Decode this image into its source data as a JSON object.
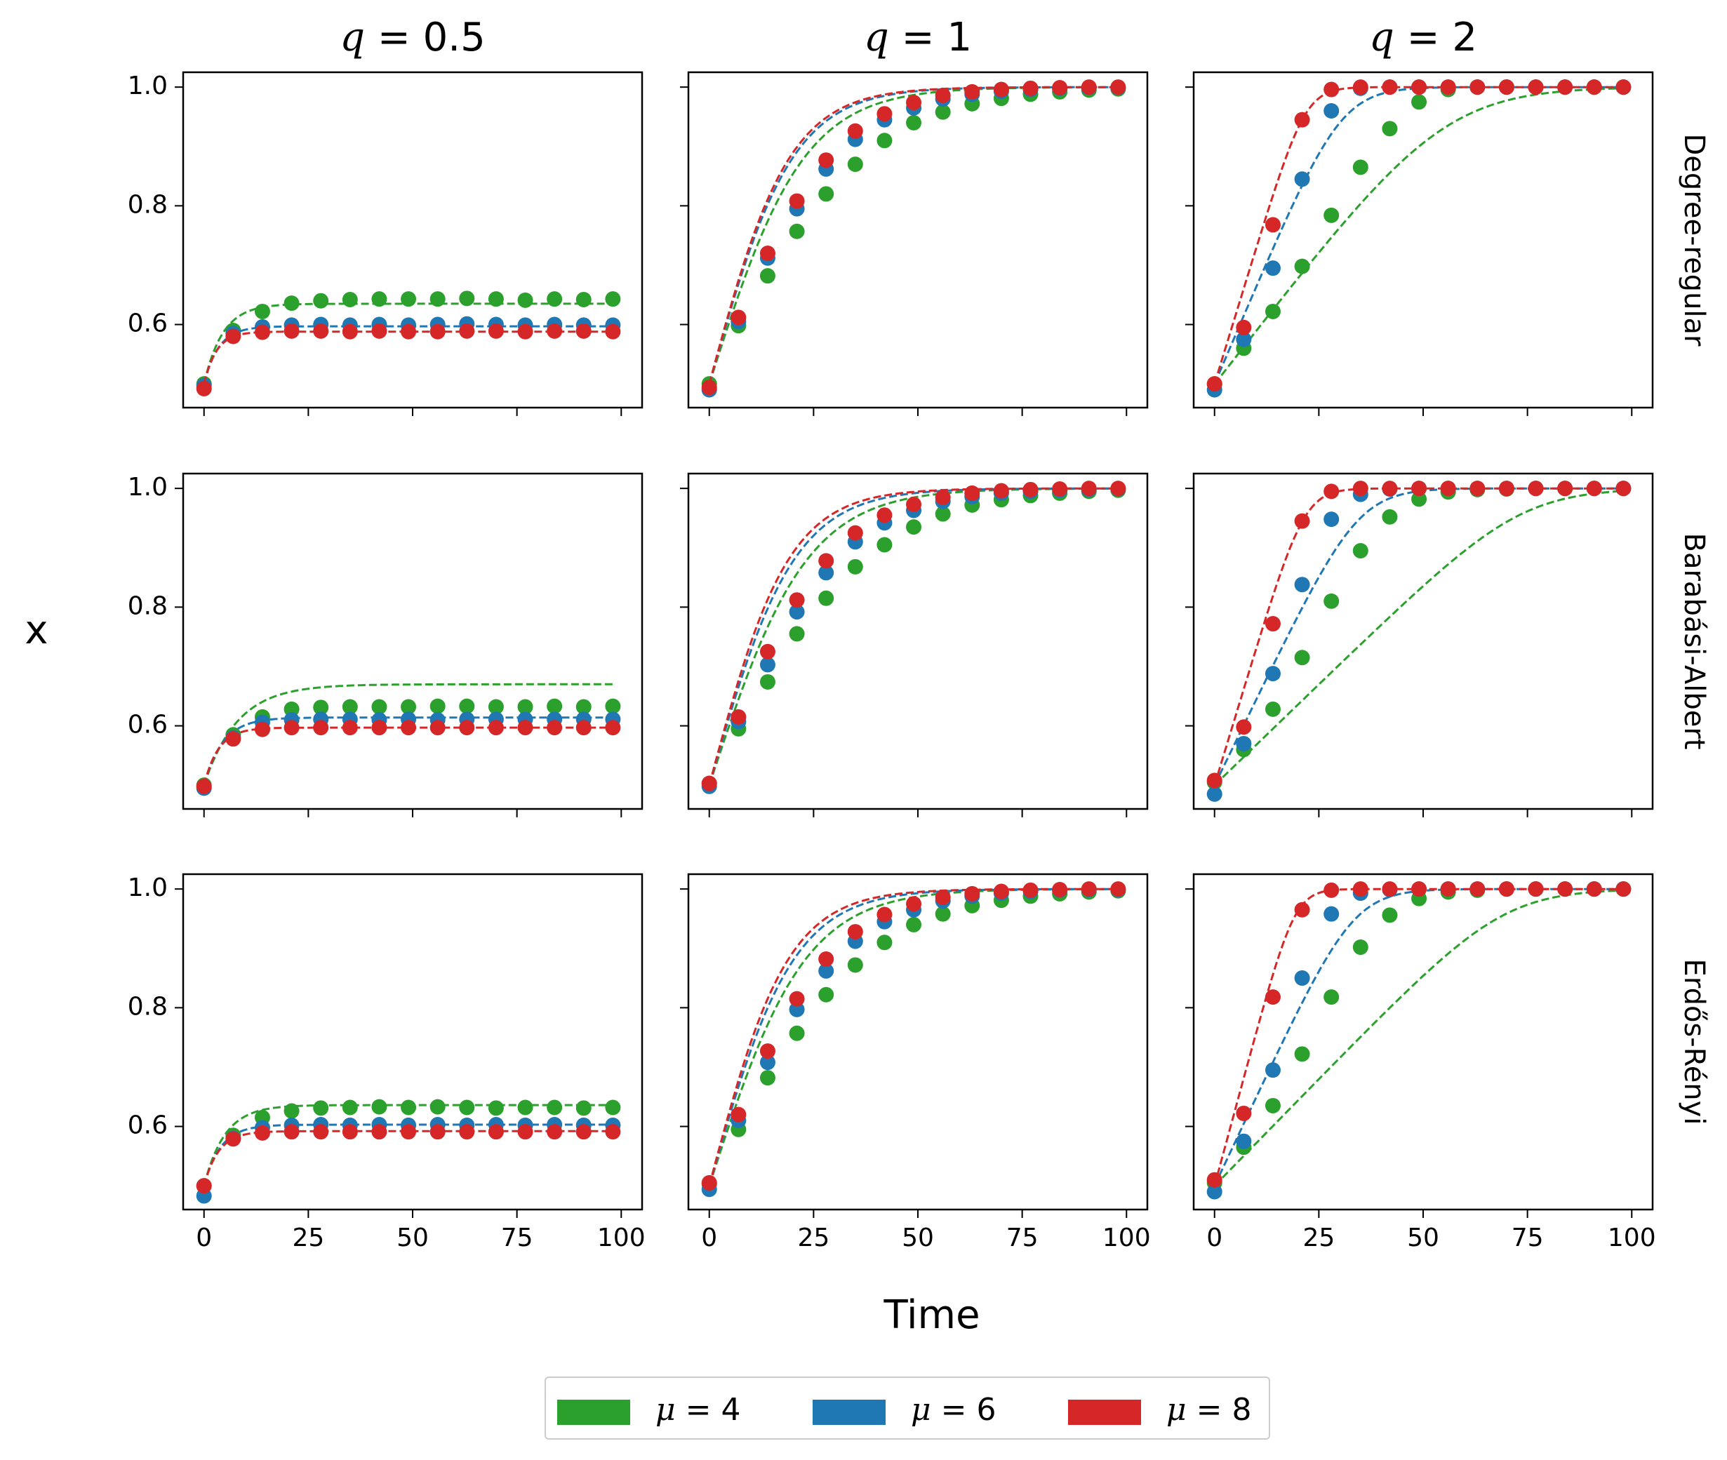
{
  "chart_data": {
    "type": "line",
    "xlabel": "Time",
    "ylabel": "x",
    "xlim": [
      -5,
      105
    ],
    "ylim": [
      0.46,
      1.025
    ],
    "xticks": [
      0,
      25,
      50,
      75,
      100
    ],
    "xtick_labels": [
      "0",
      "25",
      "50",
      "75",
      "100"
    ],
    "yticks": [
      0.6,
      0.8,
      1.0
    ],
    "ytick_labels": [
      "0.6",
      "0.8",
      "1.0"
    ],
    "column_titles": [
      {
        "label": "q",
        "value": "0.5"
      },
      {
        "label": "q",
        "value": "1"
      },
      {
        "label": "q",
        "value": "2"
      }
    ],
    "row_labels": [
      "Degree-regular",
      "Barabási-Albert",
      "Erdős-Rényi"
    ],
    "marker_times": [
      0,
      7,
      14,
      21,
      28,
      35,
      42,
      49,
      56,
      63,
      70,
      77,
      84,
      91,
      98
    ],
    "model_line_range": [
      0,
      98
    ],
    "series_meta": [
      {
        "name": "μ = 4",
        "symbol": "μ",
        "value": "4",
        "color": "#2ca02c"
      },
      {
        "name": "μ = 6",
        "symbol": "μ",
        "value": "6",
        "color": "#1f77b4"
      },
      {
        "name": "μ = 8",
        "symbol": "μ",
        "value": "8",
        "color": "#d62728"
      }
    ],
    "panels": [
      {
        "row": 0,
        "col": 0,
        "series": [
          {
            "name": "μ = 4",
            "model": {
              "type": "saturating",
              "x0": 0.5,
              "xinf": 0.635,
              "tau": 4.5
            },
            "simulated": [
              0.5,
              0.59,
              0.622,
              0.636,
              0.64,
              0.642,
              0.643,
              0.643,
              0.643,
              0.644,
              0.643,
              0.641,
              0.643,
              0.642,
              0.643
            ]
          },
          {
            "name": "μ = 6",
            "model": {
              "type": "saturating",
              "x0": 0.5,
              "xinf": 0.597,
              "tau": 3.5
            },
            "simulated": [
              0.497,
              0.585,
              0.596,
              0.599,
              0.6,
              0.599,
              0.6,
              0.599,
              0.6,
              0.601,
              0.6,
              0.599,
              0.6,
              0.599,
              0.599
            ]
          },
          {
            "name": "μ = 8",
            "model": {
              "type": "saturating",
              "x0": 0.5,
              "xinf": 0.588,
              "tau": 3.0
            },
            "simulated": [
              0.492,
              0.58,
              0.587,
              0.589,
              0.589,
              0.588,
              0.589,
              0.588,
              0.588,
              0.589,
              0.589,
              0.588,
              0.589,
              0.589,
              0.588
            ]
          }
        ]
      },
      {
        "row": 0,
        "col": 1,
        "series": [
          {
            "name": "μ = 4",
            "model": {
              "type": "logistic",
              "r": 0.088
            },
            "simulated": [
              0.5,
              0.598,
              0.682,
              0.757,
              0.82,
              0.87,
              0.91,
              0.94,
              0.958,
              0.972,
              0.981,
              0.988,
              0.992,
              0.995,
              0.997
            ]
          },
          {
            "name": "μ = 6",
            "model": {
              "type": "logistic",
              "r": 0.1
            },
            "simulated": [
              0.49,
              0.605,
              0.712,
              0.795,
              0.862,
              0.912,
              0.945,
              0.965,
              0.98,
              0.988,
              0.993,
              0.996,
              0.998,
              0.999,
              0.999
            ]
          },
          {
            "name": "μ = 8",
            "model": {
              "type": "logistic",
              "r": 0.104
            },
            "simulated": [
              0.494,
              0.612,
              0.72,
              0.808,
              0.877,
              0.926,
              0.955,
              0.974,
              0.986,
              0.992,
              0.996,
              0.998,
              0.999,
              1.0,
              1.0
            ]
          }
        ]
      },
      {
        "row": 0,
        "col": 2,
        "series": [
          {
            "name": "μ = 4",
            "model": {
              "type": "ramp",
              "x0": 0.5,
              "v": 0.0091,
              "k": 10
            },
            "simulated": [
              0.5,
              0.56,
              0.622,
              0.698,
              0.784,
              0.865,
              0.93,
              0.975,
              0.996,
              1.0,
              1.0,
              1.0,
              1.0,
              1.0,
              1.0
            ]
          },
          {
            "name": "μ = 6",
            "model": {
              "type": "ramp",
              "x0": 0.5,
              "v": 0.0165,
              "k": 12
            },
            "simulated": [
              0.49,
              0.575,
              0.695,
              0.845,
              0.96,
              0.998,
              1.0,
              1.0,
              1.0,
              1.0,
              1.0,
              1.0,
              1.0,
              1.0,
              1.0
            ]
          },
          {
            "name": "μ = 8",
            "model": {
              "type": "ramp",
              "x0": 0.5,
              "v": 0.023,
              "k": 15
            },
            "simulated": [
              0.5,
              0.595,
              0.768,
              0.945,
              0.996,
              1.0,
              1.0,
              1.0,
              1.0,
              1.0,
              1.0,
              1.0,
              1.0,
              1.0,
              1.0
            ]
          }
        ]
      },
      {
        "row": 1,
        "col": 0,
        "series": [
          {
            "name": "μ = 4",
            "model": {
              "type": "saturating",
              "x0": 0.5,
              "xinf": 0.67,
              "tau": 8
            },
            "simulated_at": {
              "index": 2,
              "value": 0.615
            },
            "simulated": [
              0.5,
              0.585,
              0.615,
              0.628,
              0.631,
              0.632,
              0.632,
              0.632,
              0.633,
              0.633,
              0.632,
              0.632,
              0.633,
              0.632,
              0.633
            ]
          },
          {
            "name": "μ = 6",
            "model": {
              "type": "saturating",
              "x0": 0.5,
              "xinf": 0.614,
              "tau": 4.5
            },
            "simulated": [
              0.495,
              0.58,
              0.606,
              0.61,
              0.611,
              0.611,
              0.61,
              0.611,
              0.61,
              0.611,
              0.611,
              0.611,
              0.611,
              0.611,
              0.611
            ]
          },
          {
            "name": "μ = 8",
            "model": {
              "type": "saturating",
              "x0": 0.5,
              "xinf": 0.597,
              "tau": 3.5
            },
            "simulated": [
              0.498,
              0.578,
              0.594,
              0.597,
              0.597,
              0.597,
              0.597,
              0.597,
              0.597,
              0.597,
              0.597,
              0.597,
              0.597,
              0.597,
              0.597
            ]
          }
        ]
      },
      {
        "row": 1,
        "col": 1,
        "series": [
          {
            "name": "μ = 4",
            "model": {
              "type": "logistic",
              "r": 0.085
            },
            "simulated": [
              0.503,
              0.595,
              0.674,
              0.755,
              0.815,
              0.868,
              0.905,
              0.935,
              0.957,
              0.972,
              0.981,
              0.988,
              0.992,
              0.995,
              0.997
            ]
          },
          {
            "name": "μ = 6",
            "model": {
              "type": "logistic",
              "r": 0.098
            },
            "simulated": [
              0.498,
              0.607,
              0.703,
              0.792,
              0.858,
              0.91,
              0.942,
              0.963,
              0.978,
              0.986,
              0.992,
              0.995,
              0.997,
              0.998,
              0.999
            ]
          },
          {
            "name": "μ = 8",
            "model": {
              "type": "logistic",
              "r": 0.105
            },
            "simulated": [
              0.503,
              0.615,
              0.725,
              0.812,
              0.878,
              0.925,
              0.955,
              0.973,
              0.985,
              0.992,
              0.996,
              0.998,
              0.999,
              1.0,
              1.0
            ]
          }
        ]
      },
      {
        "row": 1,
        "col": 2,
        "series": [
          {
            "name": "μ = 4",
            "model": {
              "type": "ramp",
              "x0": 0.5,
              "v": 0.0068,
              "k": 16
            },
            "simulated": [
              0.505,
              0.56,
              0.628,
              0.715,
              0.81,
              0.895,
              0.952,
              0.982,
              0.994,
              0.998,
              0.999,
              1.0,
              1.0,
              1.0,
              1.0
            ]
          },
          {
            "name": "μ = 6",
            "model": {
              "type": "ramp",
              "x0": 0.5,
              "v": 0.0145,
              "k": 13
            },
            "simulated": [
              0.485,
              0.57,
              0.688,
              0.838,
              0.948,
              0.99,
              0.999,
              1.0,
              1.0,
              1.0,
              1.0,
              1.0,
              1.0,
              1.0,
              1.0
            ]
          },
          {
            "name": "μ = 8",
            "model": {
              "type": "ramp",
              "x0": 0.5,
              "v": 0.0232,
              "k": 14
            },
            "simulated": [
              0.508,
              0.598,
              0.772,
              0.945,
              0.995,
              1.0,
              1.0,
              1.0,
              1.0,
              1.0,
              1.0,
              1.0,
              1.0,
              1.0,
              1.0
            ]
          }
        ]
      },
      {
        "row": 2,
        "col": 0,
        "series": [
          {
            "name": "μ = 4",
            "model": {
              "type": "saturating",
              "x0": 0.5,
              "xinf": 0.636,
              "tau": 5
            },
            "simulated": [
              0.5,
              0.585,
              0.615,
              0.626,
              0.631,
              0.632,
              0.633,
              0.632,
              0.633,
              0.632,
              0.631,
              0.632,
              0.632,
              0.631,
              0.632
            ]
          },
          {
            "name": "μ = 6",
            "model": {
              "type": "saturating",
              "x0": 0.5,
              "xinf": 0.603,
              "tau": 4
            },
            "simulated": [
              0.483,
              0.58,
              0.598,
              0.602,
              0.603,
              0.602,
              0.603,
              0.602,
              0.603,
              0.602,
              0.603,
              0.602,
              0.603,
              0.602,
              0.602
            ]
          },
          {
            "name": "μ = 8",
            "model": {
              "type": "saturating",
              "x0": 0.5,
              "xinf": 0.592,
              "tau": 3.5
            },
            "simulated": [
              0.5,
              0.579,
              0.589,
              0.591,
              0.591,
              0.591,
              0.591,
              0.591,
              0.591,
              0.591,
              0.591,
              0.591,
              0.591,
              0.591,
              0.591
            ]
          }
        ]
      },
      {
        "row": 2,
        "col": 1,
        "series": [
          {
            "name": "μ = 4",
            "model": {
              "type": "logistic",
              "r": 0.087
            },
            "simulated": [
              0.503,
              0.595,
              0.682,
              0.757,
              0.822,
              0.872,
              0.91,
              0.94,
              0.958,
              0.972,
              0.981,
              0.988,
              0.992,
              0.995,
              0.997
            ]
          },
          {
            "name": "μ = 6",
            "model": {
              "type": "logistic",
              "r": 0.099
            },
            "simulated": [
              0.494,
              0.61,
              0.708,
              0.797,
              0.862,
              0.912,
              0.945,
              0.965,
              0.98,
              0.988,
              0.993,
              0.996,
              0.998,
              0.999,
              0.999
            ]
          },
          {
            "name": "μ = 8",
            "model": {
              "type": "logistic",
              "r": 0.106
            },
            "simulated": [
              0.505,
              0.62,
              0.727,
              0.815,
              0.882,
              0.928,
              0.957,
              0.975,
              0.986,
              0.992,
              0.996,
              0.998,
              0.999,
              1.0,
              1.0
            ]
          }
        ]
      },
      {
        "row": 2,
        "col": 2,
        "series": [
          {
            "name": "μ = 4",
            "model": {
              "type": "ramp",
              "x0": 0.5,
              "v": 0.0072,
              "k": 16
            },
            "simulated": [
              0.505,
              0.565,
              0.635,
              0.722,
              0.818,
              0.902,
              0.956,
              0.984,
              0.995,
              0.998,
              1.0,
              1.0,
              1.0,
              1.0,
              1.0
            ]
          },
          {
            "name": "μ = 6",
            "model": {
              "type": "ramp",
              "x0": 0.5,
              "v": 0.015,
              "k": 13
            },
            "simulated": [
              0.49,
              0.575,
              0.695,
              0.85,
              0.958,
              0.993,
              0.999,
              1.0,
              1.0,
              1.0,
              1.0,
              1.0,
              1.0,
              1.0,
              1.0
            ]
          },
          {
            "name": "μ = 8",
            "model": {
              "type": "ramp",
              "x0": 0.5,
              "v": 0.026,
              "k": 15
            },
            "simulated": [
              0.51,
              0.622,
              0.818,
              0.965,
              0.998,
              1.0,
              1.0,
              1.0,
              1.0,
              1.0,
              1.0,
              1.0,
              1.0,
              1.0,
              1.0
            ]
          }
        ]
      }
    ]
  },
  "legend": {
    "entries": [
      {
        "symbol": "μ",
        "equals": "=",
        "value": "4",
        "color": "#2ca02c"
      },
      {
        "symbol": "μ",
        "equals": "=",
        "value": "6",
        "color": "#1f77b4"
      },
      {
        "symbol": "μ",
        "equals": "=",
        "value": "8",
        "color": "#d62728"
      }
    ]
  }
}
